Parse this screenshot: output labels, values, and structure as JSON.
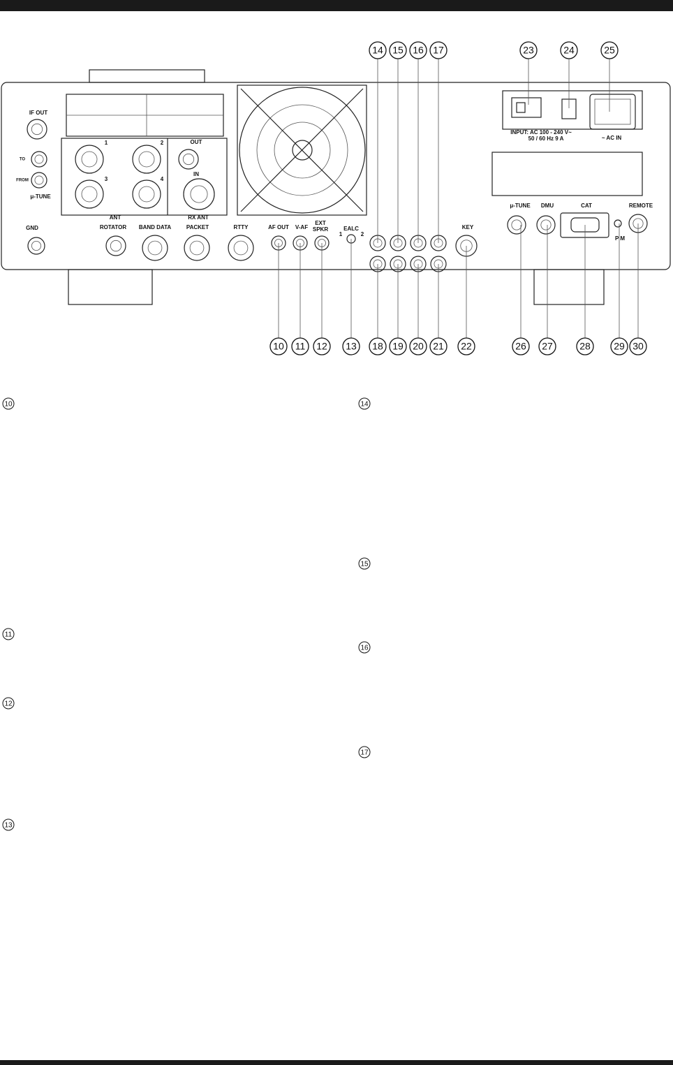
{
  "panel": {
    "labels": {
      "if_out": "IF OUT",
      "to": "TO",
      "from": "FROM",
      "mu_tune_left": "μ-TUNE",
      "gnd": "GND",
      "ant": "ANT",
      "rx_ant": "RX ANT",
      "out": "OUT",
      "in": "IN",
      "ant1": "1",
      "ant2": "2",
      "ant3": "3",
      "ant4": "4",
      "rotator": "ROTATOR",
      "band_data": "BAND DATA",
      "packet": "PACKET",
      "rtty": "RTTY",
      "af_out": "AF OUT",
      "v_af": "V-AF",
      "ext": "EXT",
      "spkr": "SPKR",
      "ealc": "EALC",
      "ealc1": "1",
      "ealc2": "2",
      "key": "KEY",
      "input": "INPUT: AC 100 - 240 V~",
      "input_freq": "50 / 60 Hz 9 A",
      "ac_in": "~ AC IN",
      "mu_tune_right": "μ-TUNE",
      "dmu": "DMU",
      "cat": "CAT",
      "remote": "REMOTE",
      "pm": "P M"
    }
  },
  "callouts": {
    "top": [
      "14",
      "15",
      "16",
      "17",
      "23",
      "24",
      "25"
    ],
    "bottom": [
      "10",
      "11",
      "12",
      "13",
      "18",
      "19",
      "20",
      "21",
      "22",
      "26",
      "27",
      "28",
      "29",
      "30"
    ]
  },
  "sections": {
    "left": [
      "10",
      "11",
      "12",
      "13"
    ],
    "right": [
      "14",
      "15",
      "16",
      "17"
    ]
  }
}
